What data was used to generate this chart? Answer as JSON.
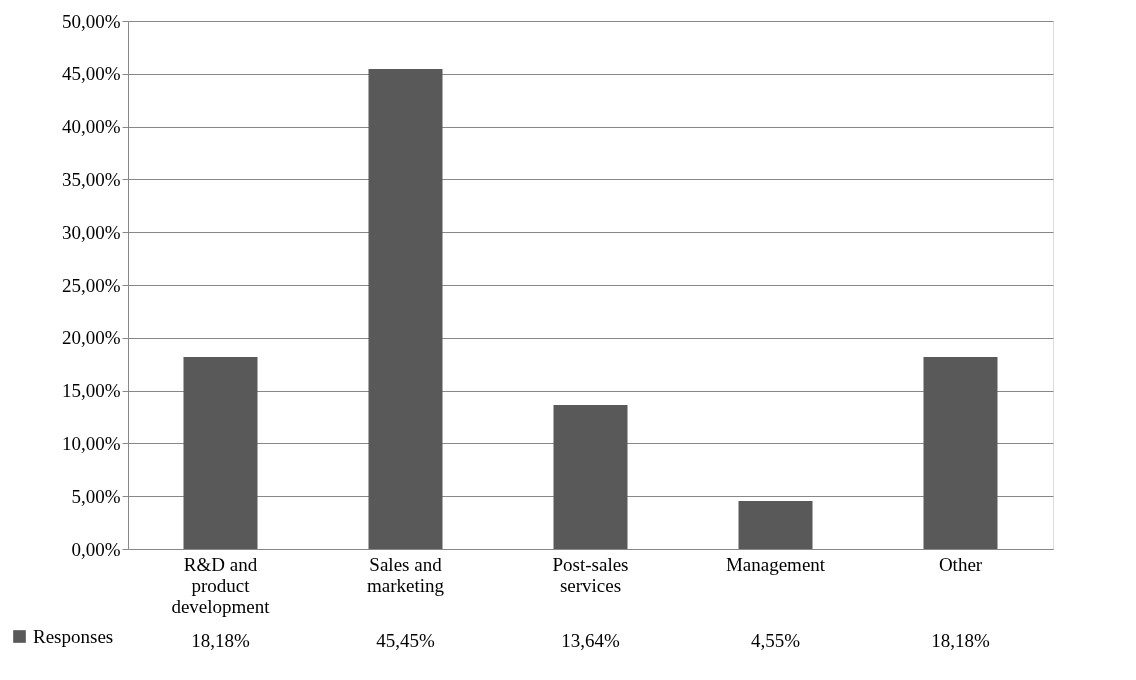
{
  "chart_data": {
    "type": "bar",
    "categories": [
      "R&D and product development",
      "Sales and marketing",
      "Post-sales services",
      "Management",
      "Other"
    ],
    "series": [
      {
        "name": "Responses",
        "color": "#595959",
        "values": [
          18.18,
          45.45,
          13.64,
          4.55,
          18.18
        ],
        "value_labels": [
          "18,18%",
          "45,45%",
          "13,64%",
          "4,55%",
          "18,18%"
        ]
      }
    ],
    "ylim": [
      0,
      50
    ],
    "yticks": [
      {
        "value": 0,
        "label": "0,00%"
      },
      {
        "value": 5,
        "label": "5,00%"
      },
      {
        "value": 10,
        "label": "10,00%"
      },
      {
        "value": 15,
        "label": "15,00%"
      },
      {
        "value": 20,
        "label": "20,00%"
      },
      {
        "value": 25,
        "label": "25,00%"
      },
      {
        "value": 30,
        "label": "30,00%"
      },
      {
        "value": 35,
        "label": "35,00%"
      },
      {
        "value": 40,
        "label": "40,00%"
      },
      {
        "value": 45,
        "label": "45,00%"
      },
      {
        "value": 50,
        "label": "50,00%"
      }
    ],
    "grid": "y",
    "legend": "bottom"
  }
}
